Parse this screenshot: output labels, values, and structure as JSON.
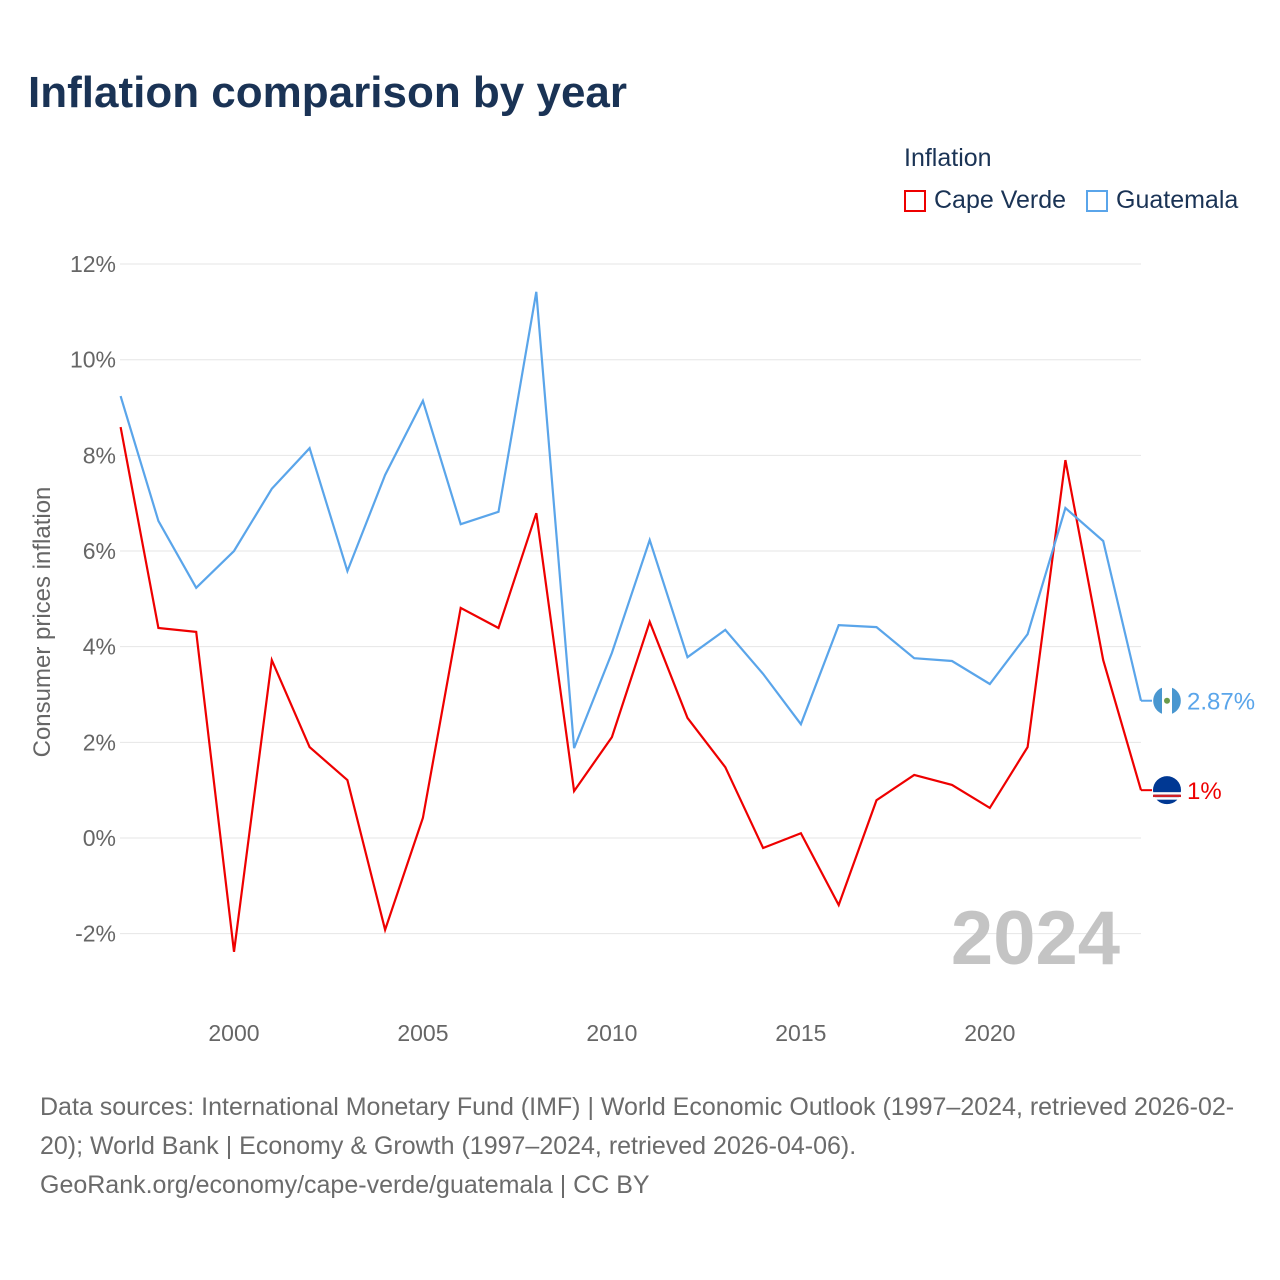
{
  "title": "Inflation comparison by year",
  "legend": {
    "title": "Inflation",
    "items": [
      {
        "name": "Cape Verde",
        "color": "#ee0000"
      },
      {
        "name": "Guatemala",
        "color": "#5aa5ea"
      }
    ]
  },
  "chart_data": {
    "type": "line",
    "ylabel": "Consumer prices inflation",
    "xlabel": "",
    "ylim": [
      -3,
      12
    ],
    "xlim": [
      1997,
      2024
    ],
    "yticks": [
      -2,
      0,
      2,
      4,
      6,
      8,
      10,
      12
    ],
    "ytick_labels": [
      "-2%",
      "0%",
      "2%",
      "4%",
      "6%",
      "8%",
      "10%",
      "12%"
    ],
    "xticks": [
      2000,
      2005,
      2010,
      2015,
      2020
    ],
    "xtick_labels": [
      "2000",
      "2005",
      "2010",
      "2015",
      "2020"
    ],
    "grid": true,
    "legend_position": "top-right",
    "year_watermark": "2024",
    "x": [
      1997,
      1998,
      1999,
      2000,
      2001,
      2002,
      2003,
      2004,
      2005,
      2006,
      2007,
      2008,
      2009,
      2010,
      2011,
      2012,
      2013,
      2014,
      2015,
      2016,
      2017,
      2018,
      2019,
      2020,
      2021,
      2022,
      2023,
      2024
    ],
    "series": [
      {
        "name": "Cape Verde",
        "color": "#ee0000",
        "end_label": "1%",
        "values": [
          8.59,
          4.39,
          4.31,
          -2.38,
          3.72,
          1.9,
          1.21,
          -1.92,
          0.42,
          4.81,
          4.39,
          6.79,
          0.98,
          2.11,
          4.52,
          2.51,
          1.48,
          -0.21,
          0.1,
          -1.4,
          0.79,
          1.32,
          1.11,
          0.63,
          1.9,
          7.9,
          3.72,
          1.0
        ]
      },
      {
        "name": "Guatemala",
        "color": "#5aa5ea",
        "end_label": "2.87%",
        "values": [
          9.24,
          6.63,
          5.23,
          6.0,
          7.3,
          8.15,
          5.58,
          7.59,
          9.14,
          6.56,
          6.82,
          11.42,
          1.88,
          3.87,
          6.23,
          3.78,
          4.35,
          3.43,
          2.38,
          4.45,
          4.41,
          3.76,
          3.7,
          3.22,
          4.26,
          6.9,
          6.21,
          2.87
        ]
      }
    ]
  },
  "sources": {
    "line1": "Data sources: International Monetary Fund (IMF) | World Economic Outlook (1997–2024, retrieved 2026-02-20); World Bank | Economy & Growth (1997–2024, retrieved 2026-04-06).",
    "line2": "GeoRank.org/economy/cape-verde/guatemala | CC BY"
  }
}
